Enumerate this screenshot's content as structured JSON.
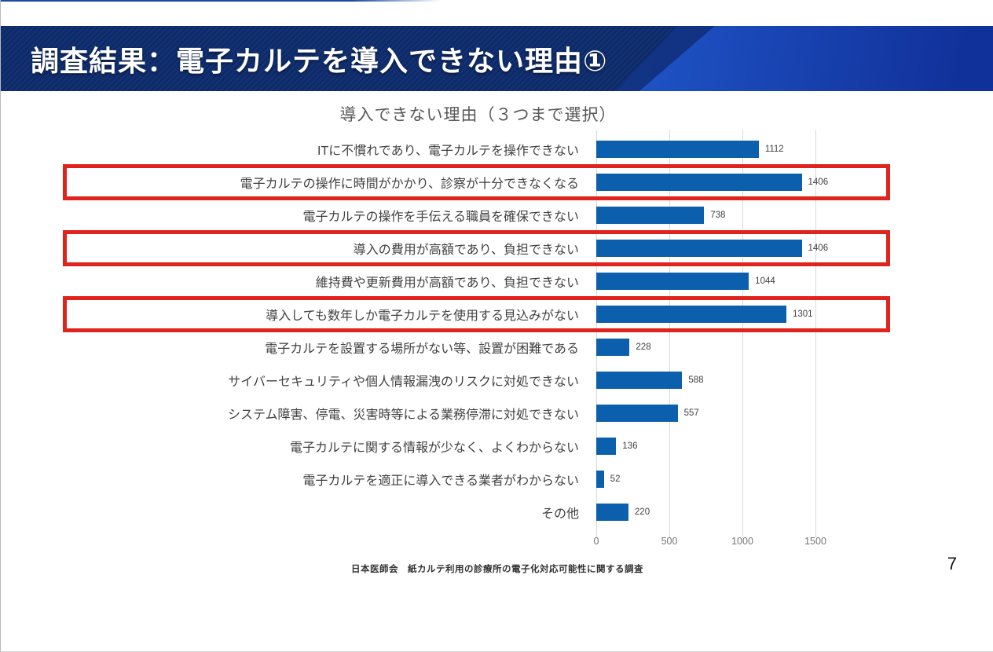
{
  "header": {
    "title": "調査結果：電子カルテを導入できない理由①"
  },
  "chart_data": {
    "type": "bar",
    "orientation": "horizontal",
    "title": "導入できない理由（３つまで選択）",
    "categories": [
      "ITに不慣れであり、電子カルテを操作できない",
      "電子カルテの操作に時間がかかり、診察が十分できなくなる",
      "電子カルテの操作を手伝える職員を確保できない",
      "導入の費用が高額であり、負担できない",
      "維持費や更新費用が高額であり、負担できない",
      "導入しても数年しか電子カルテを使用する見込みがない",
      "電子カルテを設置する場所がない等、設置が困難である",
      "サイバーセキュリティや個人情報漏洩のリスクに対処できない",
      "システム障害、停電、災害時等による業務停滞に対処できない",
      "電子カルテに関する情報が少なく、よくわからない",
      "電子カルテを適正に導入できる業者がわからない",
      "その他"
    ],
    "values": [
      1112,
      1406,
      738,
      1406,
      1044,
      1301,
      228,
      588,
      557,
      136,
      52,
      220
    ],
    "highlighted_indices": [
      1,
      3,
      5
    ],
    "x_ticks": [
      "0",
      "500",
      "1000",
      "1500"
    ],
    "xmax": 2000,
    "grid": true,
    "bar_color": "#0c5fad",
    "highlight_color": "#e0231c",
    "grid_color": "#d9d9d9"
  },
  "colors": {
    "banner_dark": "#0d2b6b",
    "banner_bright": "#2056c9"
  },
  "footer": {
    "source": "日本医師会　紙カルテ利用の診療所の電子化対応可能性に関する調査"
  },
  "page": {
    "number": "7"
  }
}
